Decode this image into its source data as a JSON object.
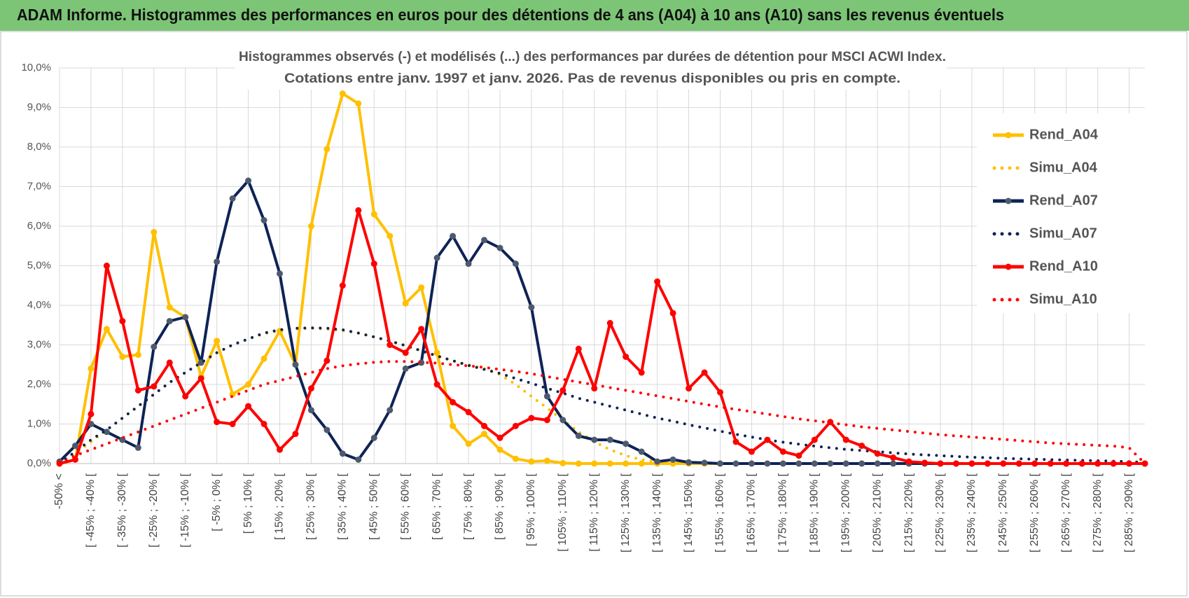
{
  "chart_data": {
    "type": "line",
    "title": "ADAM Informe. Histogrammes des performances en euros pour des détentions de 4 ans (A04) à 10 ans (A10) sans les revenus éventuels",
    "subtitle": [
      "Histogrammes observés (-) et modélisés (...) des performances par durées de détention pour MSCI ACWI Index.",
      "Cotations entre janv. 1997 et janv. 2026. Pas de revenus disponibles ou pris en compte."
    ],
    "categories": [
      "-50% <",
      null,
      "[ -45% ; -40% [",
      null,
      "[ -35% ; -30% [",
      null,
      "[ -25% ; -20% [",
      null,
      "[ -15% ; -10% [",
      null,
      "[ -5% ; 0% [",
      null,
      "[ 5% ; 10% [",
      null,
      "[ 15% ; 20% [",
      null,
      "[ 25% ; 30% [",
      null,
      "[ 35% ; 40% [",
      null,
      "[ 45% ; 50% [",
      null,
      "[ 55% ; 60% [",
      null,
      "[ 65% ; 70% [",
      null,
      "[ 75% ; 80% [",
      null,
      "[ 85% ; 90% [",
      null,
      "[ 95% ; 100% [",
      null,
      "[ 105% ; 110% [",
      null,
      "[ 115% ; 120% [",
      null,
      "[ 125% ; 130% [",
      null,
      "[ 135% ; 140% [",
      null,
      "[ 145% ; 150% [",
      null,
      "[ 155% ; 160% [",
      null,
      "[ 165% ; 170% [",
      null,
      "[ 175% ; 180% [",
      null,
      "[ 185% ; 190% [",
      null,
      "[ 195% ; 200% [",
      null,
      "[ 205% ; 210% [",
      null,
      "[ 215% ; 220% [",
      null,
      "[ 225% ; 230% [",
      null,
      "[ 235% ; 240% [",
      null,
      "[ 245% ; 250% [",
      null,
      "[ 255% ; 260% [",
      null,
      "[ 265% ; 270% [",
      null,
      "[ 275% ; 280% [",
      null,
      "[ 285% ; 290% [",
      null
    ],
    "series": [
      {
        "name": "Rend_A04",
        "color": "#ffc000",
        "style": "solid",
        "markers": true,
        "values": [
          0,
          0.1,
          2.4,
          3.4,
          2.7,
          2.75,
          5.85,
          3.95,
          3.7,
          2.2,
          3.1,
          1.75,
          2.0,
          2.65,
          3.35,
          2.5,
          6.0,
          7.95,
          9.35,
          9.1,
          6.3,
          5.75,
          4.05,
          4.45,
          2.8,
          0.95,
          0.5,
          0.75,
          0.35,
          0.12,
          0.05,
          0.07,
          0.01,
          0,
          0,
          0,
          0,
          0,
          0,
          0,
          0,
          0,
          0,
          0,
          0,
          0,
          0,
          0,
          0,
          0,
          0,
          0,
          0,
          0,
          0,
          0,
          0,
          0,
          0,
          0,
          0,
          0,
          0,
          0,
          0,
          0,
          0,
          0,
          0,
          0
        ]
      },
      {
        "name": "Simu_A04",
        "color": "#ffc000",
        "style": "dotted",
        "markers": false,
        "values": [
          0,
          0.25,
          0.55,
          0.85,
          1.15,
          1.45,
          1.75,
          2.05,
          2.3,
          2.55,
          2.8,
          3.0,
          3.15,
          3.28,
          3.36,
          3.4,
          3.42,
          3.4,
          3.36,
          3.3,
          3.2,
          3.1,
          2.98,
          2.85,
          2.72,
          2.6,
          2.5,
          2.4,
          2.25,
          2.0,
          1.7,
          1.4,
          1.1,
          0.8,
          0.55,
          0.35,
          0.2,
          0.1,
          0.05,
          0.02,
          0.01,
          0,
          0,
          0,
          0,
          0,
          0,
          0,
          0,
          0,
          0,
          0,
          0,
          0,
          0,
          0,
          0,
          0,
          0,
          0,
          0,
          0,
          0,
          0,
          0,
          0,
          0,
          0,
          0,
          0
        ]
      },
      {
        "name": "Rend_A07",
        "color": "#0e2356",
        "style": "solid",
        "markers": true,
        "values": [
          0.05,
          0.45,
          1.0,
          0.8,
          0.6,
          0.4,
          2.95,
          3.6,
          3.7,
          2.55,
          5.1,
          6.7,
          7.15,
          6.15,
          4.8,
          2.5,
          1.35,
          0.85,
          0.25,
          0.1,
          0.65,
          1.35,
          2.4,
          2.55,
          5.2,
          5.75,
          5.05,
          5.65,
          5.45,
          5.05,
          3.95,
          1.7,
          1.1,
          0.7,
          0.6,
          0.6,
          0.5,
          0.3,
          0.05,
          0.1,
          0.03,
          0.02,
          0,
          0,
          0,
          0,
          0,
          0,
          0,
          0,
          0,
          0,
          0,
          0,
          0,
          0,
          0,
          0,
          0,
          0,
          0,
          0,
          0,
          0,
          0,
          0,
          0,
          0,
          0,
          0
        ]
      },
      {
        "name": "Simu_A07",
        "color": "#0e2356",
        "style": "dotted",
        "markers": false,
        "values": [
          0,
          0.3,
          0.6,
          0.85,
          1.15,
          1.45,
          1.75,
          2.05,
          2.3,
          2.55,
          2.8,
          3.0,
          3.15,
          3.3,
          3.38,
          3.42,
          3.43,
          3.42,
          3.38,
          3.3,
          3.2,
          3.1,
          2.98,
          2.85,
          2.72,
          2.6,
          2.48,
          2.38,
          2.28,
          2.15,
          2.03,
          1.9,
          1.78,
          1.65,
          1.55,
          1.45,
          1.35,
          1.25,
          1.15,
          1.07,
          0.98,
          0.9,
          0.82,
          0.74,
          0.67,
          0.6,
          0.54,
          0.49,
          0.44,
          0.4,
          0.36,
          0.33,
          0.3,
          0.27,
          0.24,
          0.22,
          0.2,
          0.18,
          0.16,
          0.15,
          0.13,
          0.12,
          0.11,
          0.1,
          0.09,
          0.08,
          0.07,
          0.06,
          0.05,
          0.03
        ]
      },
      {
        "name": "Rend_A10",
        "color": "#ff0000",
        "style": "solid",
        "markers": true,
        "values": [
          0,
          0.1,
          1.25,
          5.0,
          3.6,
          1.85,
          1.95,
          2.55,
          1.7,
          2.15,
          1.05,
          1.0,
          1.45,
          1.0,
          0.35,
          0.75,
          1.9,
          2.6,
          4.5,
          6.4,
          5.05,
          3.0,
          2.8,
          3.4,
          2.0,
          1.55,
          1.3,
          0.95,
          0.65,
          0.95,
          1.15,
          1.1,
          1.85,
          2.9,
          1.9,
          3.55,
          2.7,
          2.3,
          4.6,
          3.8,
          1.9,
          2.3,
          1.8,
          0.55,
          0.3,
          0.6,
          0.3,
          0.2,
          0.6,
          1.05,
          0.6,
          0.45,
          0.25,
          0.15,
          0.05,
          0.02,
          0,
          0,
          0,
          0,
          0,
          0,
          0,
          0,
          0,
          0,
          0,
          0,
          0,
          0
        ]
      },
      {
        "name": "Simu_A10",
        "color": "#ff0000",
        "style": "dotted",
        "markers": false,
        "values": [
          0,
          0.2,
          0.35,
          0.5,
          0.65,
          0.8,
          0.95,
          1.1,
          1.25,
          1.4,
          1.55,
          1.7,
          1.85,
          2.0,
          2.1,
          2.2,
          2.3,
          2.4,
          2.47,
          2.52,
          2.56,
          2.58,
          2.58,
          2.56,
          2.54,
          2.5,
          2.47,
          2.43,
          2.38,
          2.33,
          2.27,
          2.2,
          2.13,
          2.06,
          1.99,
          1.92,
          1.85,
          1.78,
          1.71,
          1.64,
          1.57,
          1.5,
          1.43,
          1.37,
          1.31,
          1.25,
          1.19,
          1.13,
          1.08,
          1.03,
          0.98,
          0.93,
          0.89,
          0.85,
          0.81,
          0.77,
          0.73,
          0.7,
          0.67,
          0.64,
          0.61,
          0.58,
          0.55,
          0.52,
          0.5,
          0.48,
          0.46,
          0.44,
          0.4,
          0
        ]
      }
    ],
    "ylim": [
      0,
      10
    ],
    "yticks": [
      {
        "value": 0,
        "label": "0,0%"
      },
      {
        "value": 1,
        "label": "1,0%"
      },
      {
        "value": 2,
        "label": "2,0%"
      },
      {
        "value": 3,
        "label": "3,0%"
      },
      {
        "value": 4,
        "label": "4,0%"
      },
      {
        "value": 5,
        "label": "5,0%"
      },
      {
        "value": 6,
        "label": "6,0%"
      },
      {
        "value": 7,
        "label": "7,0%"
      },
      {
        "value": 8,
        "label": "8,0%"
      },
      {
        "value": 9,
        "label": "9,0%"
      },
      {
        "value": 10,
        "label": "10,0%"
      }
    ],
    "grid": true,
    "legend": "right"
  }
}
